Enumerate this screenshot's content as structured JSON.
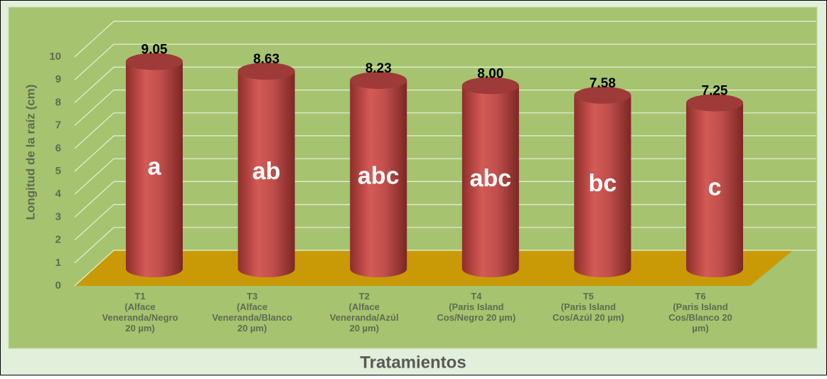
{
  "chart_data": {
    "type": "bar3d",
    "y_axis_label": "Longitud de la raíz (cm)",
    "x_axis_label": "Tratamientos",
    "categories": [
      "T1\n(Alface\nVeneranda/Negro\n20 µm)",
      "T3\n(Alface\nVeneranda/Blanco\n20 µm)",
      "T2\n(Alface\nVeneranda/Azúl\n20 µm)",
      "T4\n(Paris Island\nCos/Negro 20 µm)",
      "T5\n(Paris Island\nCos/Azúl 20 µm)",
      "T6\n(Paris Island\nCos/Blanco 20\nµm)"
    ],
    "values": [
      9.05,
      8.63,
      8.23,
      8.0,
      7.58,
      7.25
    ],
    "value_labels": [
      "9.05",
      "8.63",
      "8.23",
      "8.00",
      "7.58",
      "7.25"
    ],
    "groups": [
      "a",
      "ab",
      "abc",
      "abc",
      "bc",
      "c"
    ],
    "color": "#c0504d",
    "ylim": [
      0,
      10
    ],
    "yticks": [
      0,
      1,
      2,
      3,
      4,
      5,
      6,
      7,
      8,
      9,
      10
    ],
    "grid": true
  }
}
